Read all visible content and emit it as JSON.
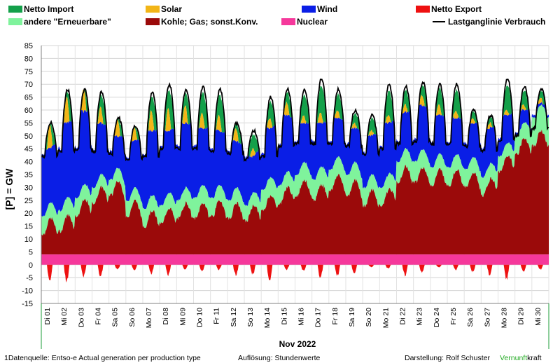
{
  "chart_data": {
    "type": "area",
    "ylabel": "[P] = GW",
    "xlabel": "Nov 2022",
    "ylim": [
      -15,
      85
    ],
    "yticks": [
      -15,
      -10,
      -5,
      0,
      5,
      10,
      15,
      20,
      25,
      30,
      35,
      40,
      45,
      50,
      55,
      60,
      65,
      70,
      75,
      80,
      85
    ],
    "grid": true,
    "legend_position": "top",
    "x_tick_labels": [
      "Di 01",
      "Mi 02",
      "Do 03",
      "Fr 04",
      "Sa 05",
      "So 06",
      "Mo 07",
      "Di 08",
      "Mi 09",
      "Do 10",
      "Fr 11",
      "Sa 12",
      "So 13",
      "Mo 14",
      "Di 15",
      "Mi 16",
      "Do 17",
      "Fr 18",
      "Sa 19",
      "So 20",
      "Mo 21",
      "Di 22",
      "Mi 23",
      "Do 24",
      "Fr 25",
      "Sa 26",
      "So 27",
      "Mo 28",
      "Di 29",
      "Mi 30"
    ],
    "legend": [
      {
        "label": "Netto Import",
        "color": "#14a04a",
        "kind": "box"
      },
      {
        "label": "Solar",
        "color": "#f2b517",
        "kind": "box"
      },
      {
        "label": "Wind",
        "color": "#0a1ee6",
        "kind": "box"
      },
      {
        "label": "Netto Export",
        "color": "#ee1111",
        "kind": "box"
      },
      {
        "label": "andere \"Erneuerbare\"",
        "color": "#7ff39c",
        "kind": "box"
      },
      {
        "label": "Kohle; Gas; sonst.Konv.",
        "color": "#9b0a0a",
        "kind": "box"
      },
      {
        "label": "Nuclear",
        "color": "#f5389b",
        "kind": "box"
      },
      {
        "label": "Lastganglinie Verbrauch",
        "color": "#000000",
        "kind": "line"
      }
    ],
    "series_daily_approx_GW": {
      "Nuclear": 4,
      "Kohle_Gas_sonst_Konv_daytime_peak": [
        18,
        19,
        25,
        30,
        33,
        25,
        21,
        22,
        24,
        24,
        25,
        24,
        23,
        27,
        30,
        33,
        31,
        35,
        33,
        29,
        29,
        38,
        38,
        37,
        37,
        36,
        33,
        42,
        49,
        52
      ],
      "andere_Erneuerbare_top": [
        24,
        26,
        31,
        35,
        38,
        30,
        27,
        28,
        30,
        31,
        31,
        30,
        28,
        34,
        36,
        40,
        38,
        42,
        40,
        35,
        35,
        45,
        45,
        43,
        43,
        42,
        39,
        47,
        55,
        62
      ],
      "Wind_top": [
        45,
        55,
        60,
        55,
        50,
        48,
        52,
        52,
        55,
        53,
        52,
        48,
        42,
        53,
        58,
        55,
        55,
        57,
        53,
        50,
        55,
        59,
        62,
        58,
        57,
        55,
        53,
        58,
        60,
        62
      ],
      "Lastganglinie_Verbrauch_peak": [
        55,
        68,
        68,
        67,
        57,
        54,
        67,
        70,
        68,
        69,
        68,
        55,
        52,
        65,
        68,
        68,
        72,
        68,
        60,
        58,
        70,
        69,
        71,
        70,
        70,
        60,
        58,
        72,
        69,
        68
      ],
      "Lastganglinie_Verbrauch_trough": [
        42,
        44,
        45,
        44,
        43,
        41,
        42,
        45,
        45,
        45,
        44,
        43,
        41,
        42,
        46,
        47,
        47,
        47,
        46,
        43,
        45,
        47,
        48,
        47,
        47,
        46,
        44,
        48,
        50,
        53
      ],
      "Solar_midday_peak": [
        9,
        10,
        9,
        6,
        7,
        5,
        8,
        9,
        7,
        6,
        6,
        5,
        3,
        4,
        5,
        3,
        4,
        3,
        2,
        2,
        3,
        3,
        4,
        4,
        3,
        2,
        2,
        2,
        2,
        2
      ],
      "Netto_Export_min": [
        -7.5,
        -7.5,
        -4.5,
        -5,
        -2,
        -2.5,
        -4,
        -4.5,
        -2,
        -2.5,
        -2,
        -4.5,
        -4,
        -7.5,
        -2,
        -2.5,
        -5.5,
        -4.5,
        -3.5,
        -1,
        -1.5,
        -4.5,
        -3,
        -1,
        -2,
        -3,
        -4,
        -6,
        -3,
        -2
      ]
    }
  },
  "footer": {
    "source": "1Datenquelle: Entso-e  Actual generation per production type",
    "resolution": "Auflösung: Stundenwerte",
    "author": "Darstellung:  Rolf Schuster",
    "brand_green": "Vernunft",
    "brand_rest": "kraft",
    "brand_color": "#22aa22"
  }
}
